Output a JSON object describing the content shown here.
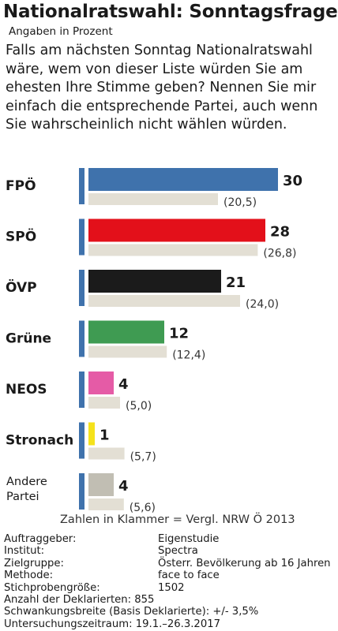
{
  "header": {
    "title": "Nationalratswahl: Sonntagsfrage",
    "subtitle": "Angaben in Prozent",
    "question": "Falls am nächsten Sonntag Nationalratswahl wäre, wem von dieser Liste würden Sie am ehesten Ihre Stimme geben? Nennen Sie mir einfach die entsprechende Partei, auch wenn Sie wahrscheinlich nicht wählen würden."
  },
  "chart_data": {
    "type": "bar",
    "orientation": "horizontal",
    "categories": [
      "FPÖ",
      "SPÖ",
      "ÖVP",
      "Grüne",
      "NEOS",
      "Stronach",
      "Andere Partei"
    ],
    "series": [
      {
        "values": [
          30,
          28,
          21,
          12,
          4,
          1,
          4
        ],
        "labels": [
          "30",
          "28",
          "21",
          "12",
          "4",
          "1",
          "4"
        ],
        "colors": [
          "#3f72ac",
          "#e3101a",
          "#1b1b1b",
          "#3f9b52",
          "#e55ba6",
          "#f5e21b",
          "#c1beb3"
        ]
      },
      {
        "name": "NRW Ö 2013",
        "values": [
          20.5,
          26.8,
          24.0,
          12.4,
          5.0,
          5.7,
          5.6
        ],
        "labels": [
          "(20,5)",
          "(26,8)",
          "(24,0)",
          "(12,4)",
          "(5,0)",
          "(5,7)",
          "(5,6)"
        ],
        "color": "#e3dfd4"
      }
    ],
    "xlim": [
      0,
      30
    ],
    "note": "Zahlen in Klammer = Vergl. NRW Ö 2013"
  },
  "colors": {
    "axis_marker": "#3f72ac",
    "prior_bar": "#e3dfd4",
    "text": "#1a1a1a"
  },
  "methodology": [
    {
      "label": "Auftraggeber:",
      "value": "Eigenstudie"
    },
    {
      "label": "Institut:",
      "value": "Spectra"
    },
    {
      "label": "Zielgruppe:",
      "value": "Österr. Bevölkerung ab 16 Jahren"
    },
    {
      "label": "Methode:",
      "value": "face to face"
    },
    {
      "label": "Stichprobengröße:",
      "value": "1502"
    },
    {
      "label": "Anzahl der Deklarierten: 855",
      "value": ""
    },
    {
      "label": "Schwankungsbreite (Basis Deklarierte): +/- 3,5%",
      "value": ""
    },
    {
      "label": "Untersuchungszeitraum: 19.1.–26.3.2017",
      "value": ""
    }
  ]
}
